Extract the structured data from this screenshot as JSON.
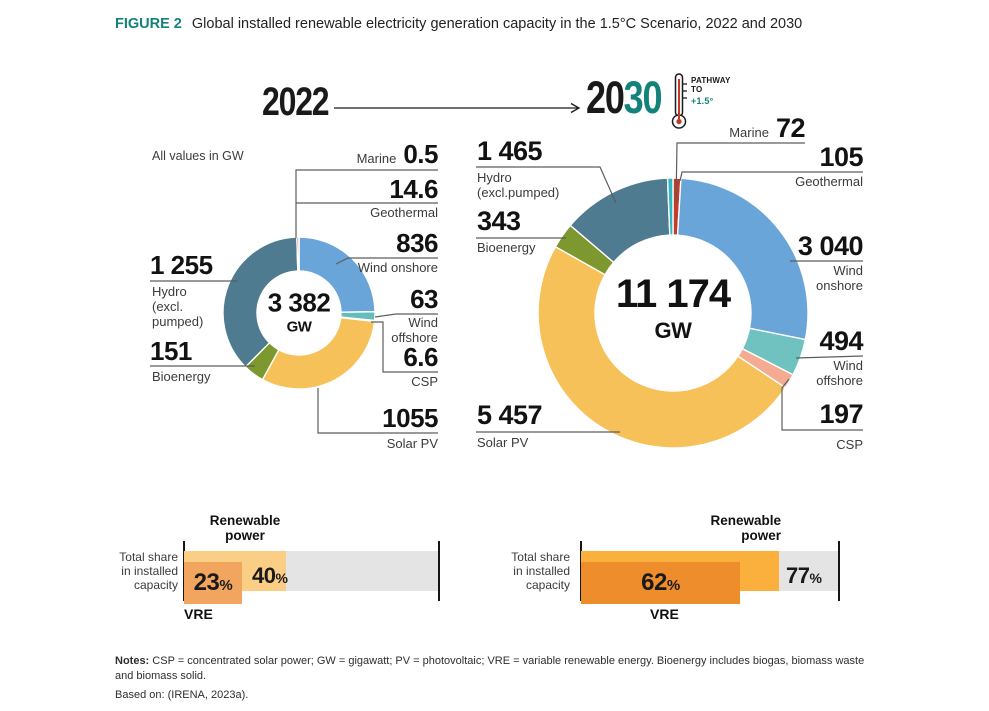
{
  "header": {
    "figure_tag": "FIGURE 2",
    "title": "Global installed renewable electricity generation capacity in the 1.5°C Scenario, 2022 and 2030"
  },
  "timeline": {
    "year_start": "2022",
    "year_end_prefix": "20",
    "year_end_suffix": "30",
    "pathway": "PATHWAY",
    "to": "TO",
    "target": "+1.5°"
  },
  "units_note": "All values in GW",
  "colors": {
    "teal_accent": "#13827B",
    "wind_onshore": "#69A5D9",
    "wind_offshore": "#66BCBB",
    "csp": "#F5AB92",
    "solar_pv": "#F7C159",
    "bioenergy": "#7C982E",
    "hydro": "#4E7B8F",
    "geothermal": "#C43B29",
    "marine": "#2FB7C6",
    "track_gray": "#E4E4E4"
  },
  "chart_data": [
    {
      "type": "pie",
      "year": "2022",
      "center_value": "3 382",
      "center_unit": "GW",
      "total_gw": 3382,
      "slices": [
        {
          "label": "Wind onshore",
          "value": 836,
          "color": "#69A5D9"
        },
        {
          "label": "Wind offshore",
          "value": 63,
          "color": "#66BCBB"
        },
        {
          "label": "CSP",
          "value": 6.6,
          "color": "#F5AB92"
        },
        {
          "label": "Solar PV",
          "value": 1055,
          "color": "#F7C159"
        },
        {
          "label": "Bioenergy",
          "value": 151,
          "color": "#7C982E"
        },
        {
          "label": "Hydro (excl. pumped)",
          "value": 1255,
          "color": "#4E7B8F"
        },
        {
          "label": "Geothermal",
          "value": 14.6,
          "color": "#C43B29"
        },
        {
          "label": "Marine",
          "value": 0.5,
          "color": "#2FB7C6"
        }
      ],
      "callouts": {
        "marine": {
          "name": "Marine",
          "value": "0.5"
        },
        "geothermal": {
          "name": "Geothermal",
          "value": "14.6"
        },
        "wind_onshore": {
          "name": "Wind onshore",
          "value": "836"
        },
        "wind_offshore": {
          "name": "Wind\noffshore",
          "value": "63"
        },
        "csp": {
          "name": "CSP",
          "value": "6.6"
        },
        "solar_pv": {
          "name": "Solar PV",
          "value": "1055"
        },
        "bioenergy": {
          "name": "Bioenergy",
          "value": "151"
        },
        "hydro": {
          "name": "Hydro\n(excl.\npumped)",
          "value": "1 255"
        }
      }
    },
    {
      "type": "pie",
      "year": "2030",
      "center_value": "11 174",
      "center_unit": "GW",
      "total_gw": 11174,
      "slices": [
        {
          "label": "Geothermal",
          "value": 105,
          "color": "#C43B29"
        },
        {
          "label": "Wind onshore",
          "value": 3040,
          "color": "#69A5D9"
        },
        {
          "label": "Wind offshore",
          "value": 494,
          "color": "#6FC2C0"
        },
        {
          "label": "CSP",
          "value": 197,
          "color": "#F5AB92"
        },
        {
          "label": "Solar PV",
          "value": 5457,
          "color": "#F7C159"
        },
        {
          "label": "Bioenergy",
          "value": 343,
          "color": "#7C982E"
        },
        {
          "label": "Hydro (excl. pumped)",
          "value": 1465,
          "color": "#4E7B8F"
        },
        {
          "label": "Marine",
          "value": 72,
          "color": "#2FB7C6"
        }
      ],
      "callouts": {
        "marine": {
          "name": "Marine",
          "value": "72"
        },
        "geothermal": {
          "name": "Geothermal",
          "value": "105"
        },
        "wind_onshore": {
          "name": "Wind\nonshore",
          "value": "3 040"
        },
        "wind_offshore": {
          "name": "Wind\noffshore",
          "value": "494"
        },
        "csp": {
          "name": "CSP",
          "value": "197"
        },
        "solar_pv": {
          "name": "Solar PV",
          "value": "5 457"
        },
        "bioenergy": {
          "name": "Bioenergy",
          "value": "343"
        },
        "hydro": {
          "name": "Hydro\n(excl.pumped)",
          "value": "1 465"
        }
      }
    },
    {
      "type": "bar",
      "year": "2022",
      "title": "Renewable\npower",
      "axis_label": "Total share\nin installed\ncapacity",
      "xlim": [
        0,
        100
      ],
      "unit": "%",
      "categories": [
        "VRE",
        "Renewable power"
      ],
      "values": [
        23,
        40
      ],
      "bars": [
        {
          "label": "VRE",
          "pct": 23,
          "display": "23",
          "color": "#F2A55F"
        },
        {
          "label": "Renewable power",
          "pct": 40,
          "display": "40",
          "color": "#FBCE85"
        }
      ],
      "pct_symbol": "%",
      "vre_label": "VRE",
      "track_color": "#E4E4E4"
    },
    {
      "type": "bar",
      "year": "2030",
      "title": "Renewable\npower",
      "axis_label": "Total share\nin installed\ncapacity",
      "xlim": [
        0,
        100
      ],
      "unit": "%",
      "categories": [
        "VRE",
        "Renewable power"
      ],
      "values": [
        62,
        77
      ],
      "bars": [
        {
          "label": "VRE",
          "pct": 62,
          "display": "62",
          "color": "#EE8D2B"
        },
        {
          "label": "Renewable power",
          "pct": 77,
          "display": "77",
          "color": "#FBB03D"
        }
      ],
      "pct_symbol": "%",
      "vre_label": "VRE",
      "track_color": "#E4E4E4"
    }
  ],
  "notes": {
    "label": "Notes:",
    "body": " CSP = concentrated solar power; GW = gigawatt; PV = photovoltaic; VRE = variable renewable energy. Bioenergy includes biogas, biomass waste and biomass solid.",
    "based_on": "Based on: (IRENA, 2023a)."
  }
}
